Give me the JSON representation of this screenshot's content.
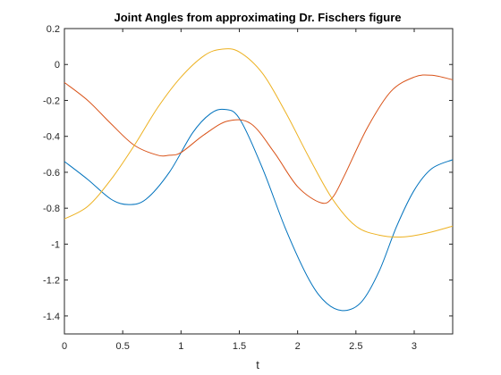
{
  "chart_data": {
    "type": "line",
    "title": "Joint Angles from approximating Dr. Fischers figure",
    "xlabel": "t",
    "ylabel": "",
    "xlim": [
      0,
      3.33
    ],
    "ylim": [
      -1.5,
      0.2
    ],
    "xticks": [
      0,
      0.5,
      1,
      1.5,
      2,
      2.5,
      3
    ],
    "xtick_labels": [
      "0",
      "0.5",
      "1",
      "1.5",
      "2",
      "2.5",
      "3"
    ],
    "yticks": [
      0.2,
      0,
      -0.2,
      -0.4,
      -0.6,
      -0.8,
      -1,
      -1.2,
      -1.4
    ],
    "ytick_labels": [
      "0.2",
      "0",
      "-0.2",
      "-0.4",
      "-0.6",
      "-0.8",
      "-1",
      "-1.2",
      "-1.4"
    ],
    "grid": false,
    "series": [
      {
        "color": "#0072BD",
        "x": [
          0,
          0.2,
          0.4,
          0.55,
          0.7,
          0.9,
          1.1,
          1.25,
          1.37,
          1.5,
          1.7,
          1.9,
          2.1,
          2.25,
          2.4,
          2.55,
          2.7,
          2.85,
          3.0,
          3.15,
          3.33
        ],
        "y": [
          -0.54,
          -0.64,
          -0.75,
          -0.78,
          -0.75,
          -0.6,
          -0.38,
          -0.275,
          -0.25,
          -0.3,
          -0.58,
          -0.92,
          -1.2,
          -1.33,
          -1.37,
          -1.32,
          -1.15,
          -0.9,
          -0.7,
          -0.58,
          -0.53
        ]
      },
      {
        "color": "#D95319",
        "x": [
          0,
          0.2,
          0.4,
          0.6,
          0.8,
          0.9,
          1.0,
          1.2,
          1.4,
          1.6,
          1.8,
          2.0,
          2.2,
          2.3,
          2.4,
          2.6,
          2.8,
          3.0,
          3.15,
          3.33
        ],
        "y": [
          -0.1,
          -0.2,
          -0.33,
          -0.45,
          -0.505,
          -0.505,
          -0.49,
          -0.39,
          -0.315,
          -0.33,
          -0.49,
          -0.68,
          -0.77,
          -0.74,
          -0.62,
          -0.35,
          -0.15,
          -0.07,
          -0.06,
          -0.085
        ]
      },
      {
        "color": "#EDB120",
        "x": [
          0,
          0.2,
          0.4,
          0.6,
          0.8,
          1.0,
          1.2,
          1.35,
          1.5,
          1.7,
          1.9,
          2.1,
          2.3,
          2.5,
          2.7,
          2.9,
          3.1,
          3.33
        ],
        "y": [
          -0.86,
          -0.79,
          -0.64,
          -0.45,
          -0.24,
          -0.07,
          0.05,
          0.085,
          0.07,
          -0.05,
          -0.27,
          -0.52,
          -0.75,
          -0.9,
          -0.95,
          -0.96,
          -0.94,
          -0.9
        ]
      }
    ]
  }
}
